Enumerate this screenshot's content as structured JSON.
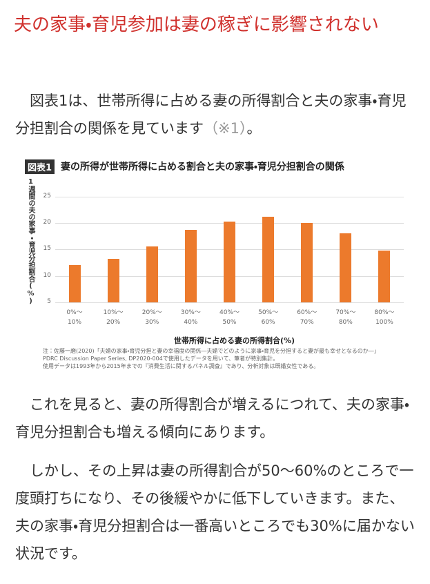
{
  "heading": "夫の家事・育児参加は妻の稼ぎに影響されない",
  "paragraphs": [
    {
      "text": "図表1は、世帯所得に占める妻の所得割合と夫の家事・育児分担割合の関係を見ています",
      "ref": "（※1）",
      "end": "。"
    },
    {
      "text": "これを見ると、妻の所得割合が増えるにつれて、夫の家事・育児分担割合も増える傾向にあります。"
    },
    {
      "text": "しかし、その上昇は妻の所得割合が50～60%のところで一度頭打ちになり、その後緩やかに低下していきます。また、夫の家事・育児分担割合は一番高いところでも30%に届かない状況です。"
    }
  ],
  "chart_data": {
    "type": "bar",
    "badge": "図表1",
    "title": "妻の所得が世帯所得に占める割合と夫の家事・育児分担割合の関係",
    "y_label": "1週間の夫の家事・育児分担割合(%)",
    "x_label": "世帯所得に占める妻の所得割合(%)",
    "categories": [
      "0%～\n10%",
      "10%～\n20%",
      "20%～\n30%",
      "30%～\n40%",
      "40%～\n50%",
      "50%～\n60%",
      "60%～\n70%",
      "70%～\n80%",
      "80%～\n100%"
    ],
    "values": [
      12.1,
      13.2,
      15.6,
      18.7,
      20.3,
      21.2,
      20.0,
      18.0,
      14.8
    ],
    "color": "#ec7a2c",
    "ylim": [
      5,
      26
    ],
    "yticks": [
      5,
      10,
      15,
      20,
      25
    ],
    "grid": true,
    "notes": [
      "注：佐藤一磨(2020)「夫婦の家事・育児分担と妻の幸福度の関係―夫婦でどのように家事・育児を分担すると妻が最も幸せとなるのか―」",
      "PDRC Discussion Paper Series, DP2020-004で使用したデータを用いて、筆者が特別集計。",
      "使用データは1993年から2015年までの『消費生活に関するパネル調査』であり、分析対象は既婚女性である。"
    ]
  }
}
